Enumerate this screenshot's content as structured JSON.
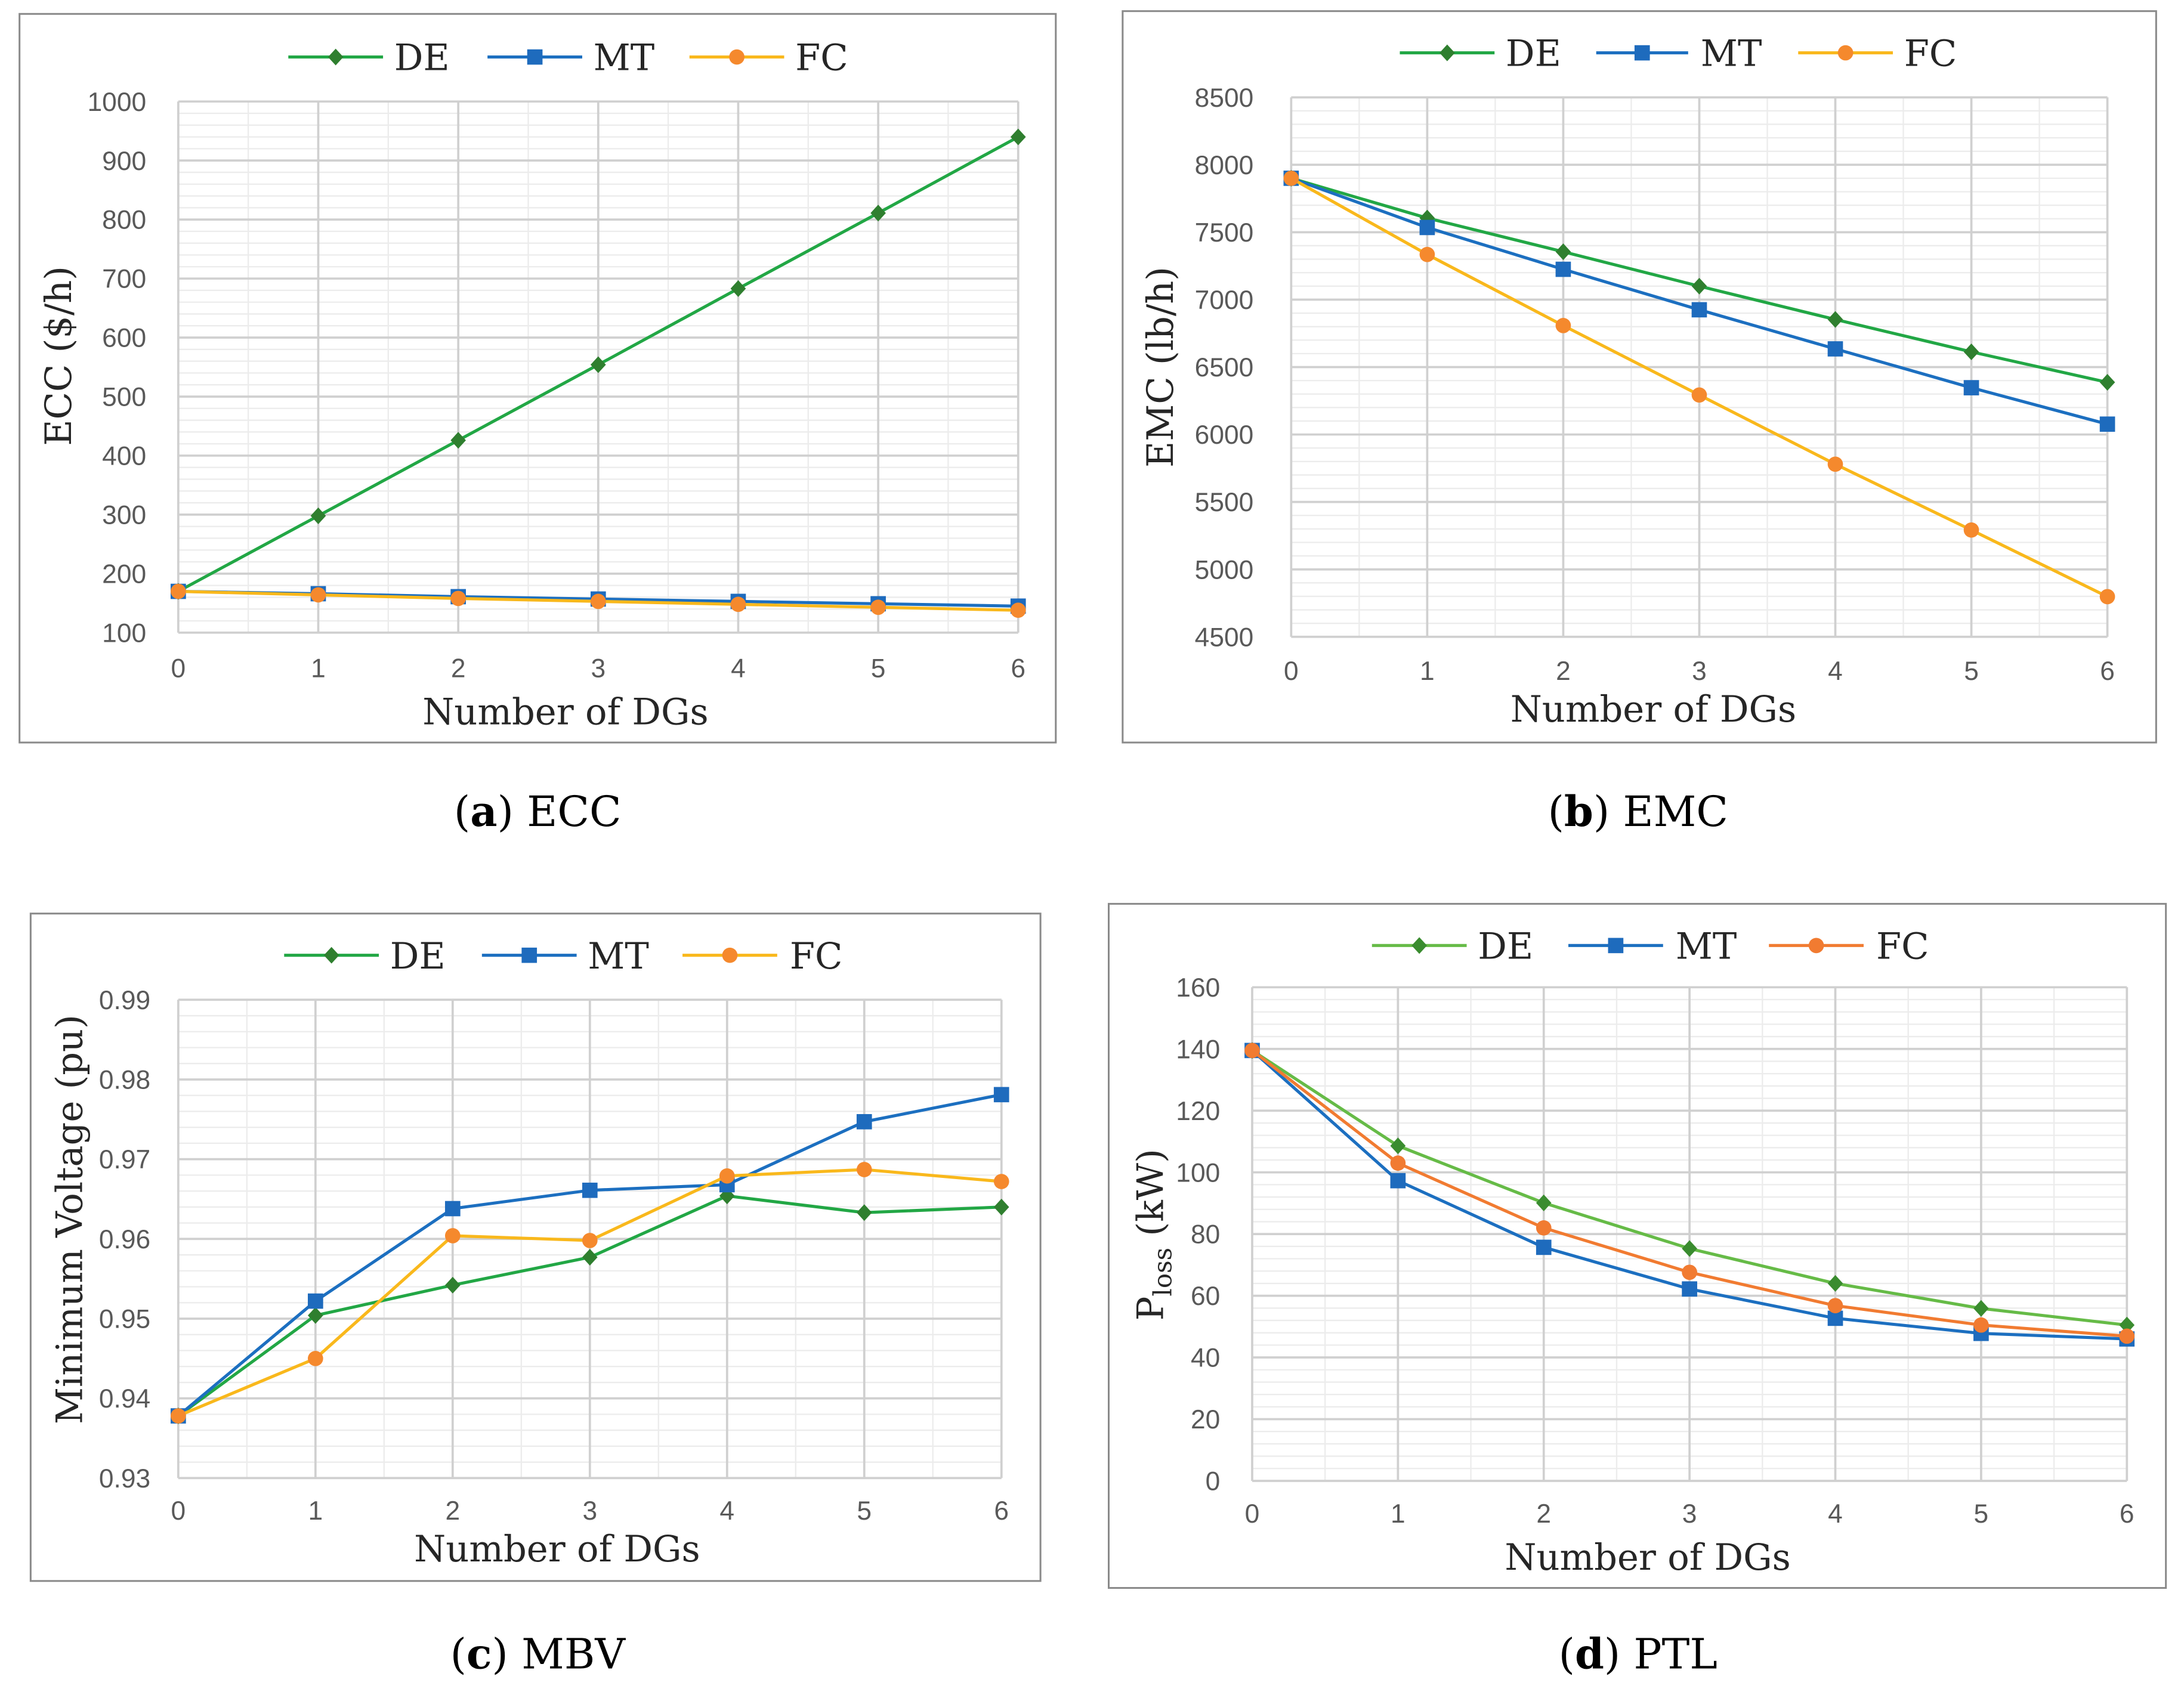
{
  "chart_data": [
    {
      "type": "line",
      "caption": [
        {
          "text": "(",
          "bold": false
        },
        {
          "text": "a",
          "bold": true
        },
        {
          "text": ") ECC",
          "bold": false
        }
      ],
      "xlabel": "Number of DGs",
      "ylabel": [
        {
          "text": "ECC ($/h)"
        }
      ],
      "x": [
        0,
        1,
        2,
        3,
        4,
        5,
        6
      ],
      "xticks": [
        "0",
        "1",
        "2",
        "3",
        "4",
        "5",
        "6"
      ],
      "xlim": [
        0,
        6
      ],
      "yticks": [
        "100",
        "200",
        "300",
        "400",
        "500",
        "600",
        "700",
        "800",
        "900",
        "1000"
      ],
      "ylim": [
        100,
        1000
      ],
      "grid": {
        "major": true,
        "minor_x_step": 0.5,
        "minor_y_step": 20
      },
      "legend": "top-center",
      "series": [
        {
          "name": "DE",
          "marker": "diamond",
          "line_color": "#22a745",
          "marker_color": "#2f7f2f",
          "values": [
            170,
            298,
            426,
            554,
            683,
            811,
            940
          ]
        },
        {
          "name": "MT",
          "marker": "square",
          "line_color": "#1c6fc0",
          "marker_color": "#1e6bbd",
          "values": [
            170,
            166,
            161,
            157,
            153,
            149,
            145
          ]
        },
        {
          "name": "FC",
          "marker": "circle",
          "line_color": "#f9b81c",
          "marker_color": "#f5892d",
          "values": [
            170,
            164,
            158,
            153,
            148,
            143,
            138
          ]
        }
      ]
    },
    {
      "type": "line",
      "caption": [
        {
          "text": "(",
          "bold": false
        },
        {
          "text": "b",
          "bold": true
        },
        {
          "text": ") EMC",
          "bold": false
        }
      ],
      "xlabel": "Number of DGs",
      "ylabel": [
        {
          "text": "EMC (lb/h)"
        }
      ],
      "x": [
        0,
        1,
        2,
        3,
        4,
        5,
        6
      ],
      "xticks": [
        "0",
        "1",
        "2",
        "3",
        "4",
        "5",
        "6"
      ],
      "xlim": [
        0,
        6
      ],
      "yticks": [
        "4500",
        "5000",
        "5500",
        "6000",
        "6500",
        "7000",
        "7500",
        "8000",
        "8500"
      ],
      "ylim": [
        4500,
        8500
      ],
      "grid": {
        "major": true,
        "minor_x_step": 0.5,
        "minor_y_step": 100
      },
      "legend": "top-center",
      "series": [
        {
          "name": "DE",
          "marker": "diamond",
          "line_color": "#22a745",
          "marker_color": "#2f7f2f",
          "values": [
            7900,
            7605,
            7355,
            7100,
            6853,
            6613,
            6387
          ]
        },
        {
          "name": "MT",
          "marker": "square",
          "line_color": "#1c6fc0",
          "marker_color": "#1e6bbd",
          "values": [
            7900,
            7535,
            7225,
            6925,
            6635,
            6347,
            6077
          ]
        },
        {
          "name": "FC",
          "marker": "circle",
          "line_color": "#f9b81c",
          "marker_color": "#f5892d",
          "values": [
            7900,
            7335,
            6808,
            6293,
            5780,
            5292,
            4798
          ]
        }
      ]
    },
    {
      "type": "line",
      "caption": [
        {
          "text": "(",
          "bold": false
        },
        {
          "text": "c",
          "bold": true
        },
        {
          "text": ") MBV",
          "bold": false
        }
      ],
      "xlabel": "Number of DGs",
      "ylabel": [
        {
          "text": "Minimum Voltage (pu)"
        }
      ],
      "x": [
        0,
        1,
        2,
        3,
        4,
        5,
        6
      ],
      "xticks": [
        "0",
        "1",
        "2",
        "3",
        "4",
        "5",
        "6"
      ],
      "xlim": [
        0,
        6
      ],
      "yticks": [
        "0.93",
        "0.94",
        "0.95",
        "0.96",
        "0.97",
        "0.98",
        "0.99"
      ],
      "ylim": [
        0.93,
        0.99
      ],
      "grid": {
        "major": true,
        "minor_x_step": 0.5,
        "minor_y_step": 0.002
      },
      "legend": "top-center",
      "series": [
        {
          "name": "DE",
          "marker": "diamond",
          "line_color": "#22a745",
          "marker_color": "#2f7f2f",
          "values": [
            0.9378,
            0.9504,
            0.9542,
            0.9577,
            0.9654,
            0.9633,
            0.964
          ]
        },
        {
          "name": "MT",
          "marker": "square",
          "line_color": "#1c6fc0",
          "marker_color": "#1e6bbd",
          "values": [
            0.9378,
            0.9522,
            0.9638,
            0.9661,
            0.9668,
            0.9747,
            0.9781
          ]
        },
        {
          "name": "FC",
          "marker": "circle",
          "line_color": "#f9b81c",
          "marker_color": "#f5892d",
          "values": [
            0.9378,
            0.945,
            0.9604,
            0.9598,
            0.9679,
            0.9687,
            0.9672
          ]
        }
      ]
    },
    {
      "type": "line",
      "caption": [
        {
          "text": "(",
          "bold": false
        },
        {
          "text": "d",
          "bold": true
        },
        {
          "text": ") PTL",
          "bold": false
        }
      ],
      "xlabel": "Number of DGs",
      "ylabel": [
        {
          "text": "P"
        },
        {
          "text": "loss",
          "sub": true
        },
        {
          "text": " (kW)"
        }
      ],
      "x": [
        0,
        1,
        2,
        3,
        4,
        5,
        6
      ],
      "xticks": [
        "0",
        "1",
        "2",
        "3",
        "4",
        "5",
        "6"
      ],
      "xlim": [
        0,
        6
      ],
      "yticks": [
        "0",
        "20",
        "40",
        "60",
        "80",
        "100",
        "120",
        "140",
        "160"
      ],
      "ylim": [
        0,
        160
      ],
      "grid": {
        "major": true,
        "minor_x_step": 0.5,
        "minor_y_step": 4
      },
      "legend": "top-center",
      "series": [
        {
          "name": "DE",
          "marker": "diamond",
          "line_color": "#66bb47",
          "marker_color": "#3a8c2f",
          "values": [
            139.5,
            108.6,
            90.1,
            75.3,
            64.0,
            55.9,
            50.5
          ]
        },
        {
          "name": "MT",
          "marker": "square",
          "line_color": "#1c6fc0",
          "marker_color": "#1e6bbd",
          "values": [
            139.5,
            97.3,
            75.7,
            62.2,
            52.7,
            47.8,
            46.0
          ]
        },
        {
          "name": "FC",
          "marker": "circle",
          "line_color": "#f17b31",
          "marker_color": "#f17b31",
          "values": [
            139.5,
            103.0,
            82.0,
            67.6,
            56.8,
            50.5,
            46.9
          ]
        }
      ]
    }
  ]
}
